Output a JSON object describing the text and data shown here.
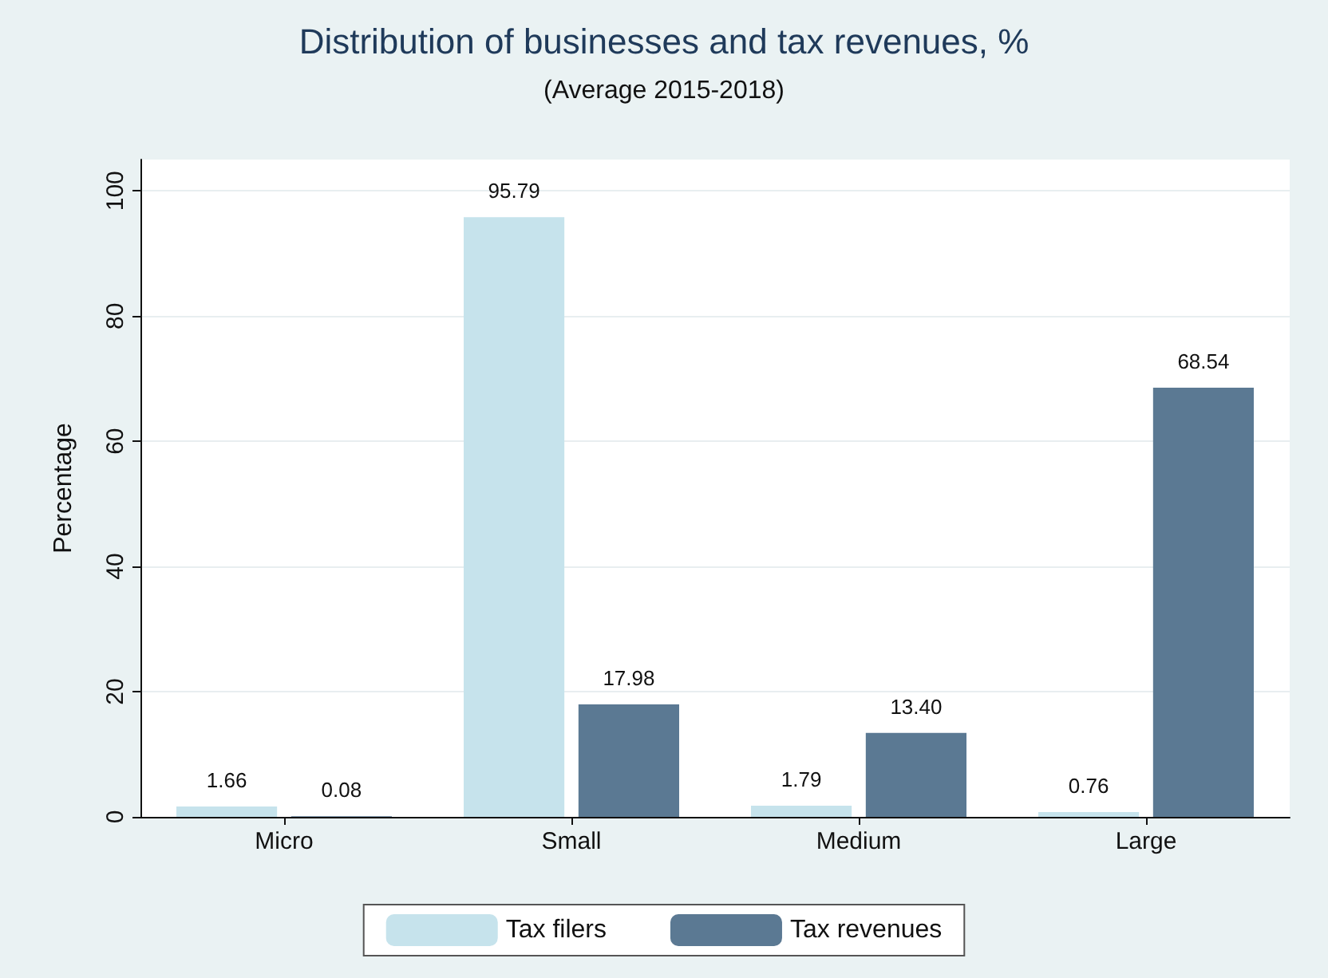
{
  "chart_data": {
    "type": "bar",
    "title": "Distribution of businesses and tax revenues, %",
    "subtitle": "(Average 2015-2018)",
    "ylabel": "Percentage",
    "categories": [
      "Micro",
      "Small",
      "Medium",
      "Large"
    ],
    "series": [
      {
        "name": "Tax filers",
        "color": "#c6e3ec",
        "values": [
          1.66,
          95.79,
          1.79,
          0.76
        ],
        "value_labels": [
          "1.66",
          "95.79",
          "1.79",
          "0.76"
        ]
      },
      {
        "name": "Tax revenues",
        "color": "#5b7993",
        "values": [
          0.08,
          17.98,
          13.4,
          68.54
        ],
        "value_labels": [
          "0.08",
          "17.98",
          "13.40",
          "68.54"
        ]
      }
    ],
    "ylim": [
      0,
      105
    ],
    "yticks": [
      0,
      20,
      40,
      60,
      80,
      100
    ],
    "grid": "y",
    "legend": "bottom"
  }
}
